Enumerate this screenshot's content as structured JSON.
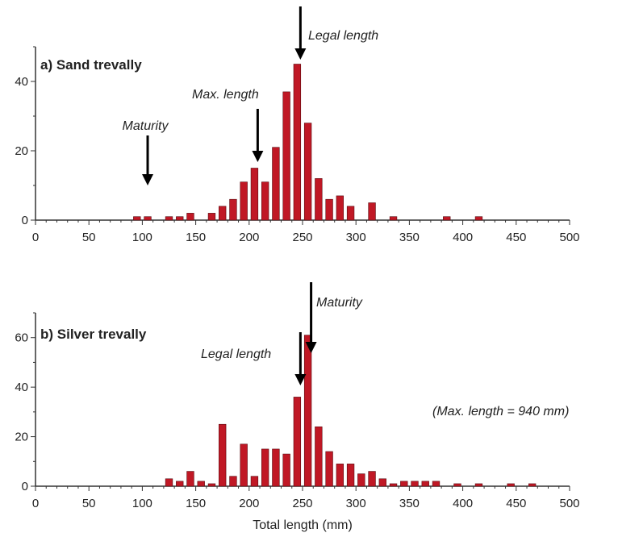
{
  "colors": {
    "bar": "#c01825",
    "bar_edge": "#5a0a10",
    "axis": "#333333",
    "arrow": "#000000"
  },
  "xlabel": "Total length (mm)",
  "chart_data": [
    {
      "type": "bar",
      "title": "a) Sand trevally",
      "xlim": [
        0,
        500
      ],
      "ylim": [
        0,
        50
      ],
      "xticks": [
        0,
        50,
        100,
        150,
        200,
        250,
        300,
        350,
        400,
        450,
        500
      ],
      "yticks": [
        0,
        20,
        40
      ],
      "x": [
        95,
        105,
        125,
        135,
        145,
        165,
        175,
        185,
        195,
        205,
        215,
        225,
        235,
        245,
        255,
        265,
        275,
        285,
        295,
        315,
        335,
        385,
        415
      ],
      "values": [
        1,
        1,
        1,
        1,
        2,
        2,
        4,
        6,
        11,
        15,
        11,
        21,
        37,
        45,
        28,
        12,
        6,
        7,
        4,
        5,
        1,
        1,
        1
      ],
      "annotations": [
        {
          "text": "Maturity",
          "x": 105
        },
        {
          "text": "Max. length",
          "x": 208
        },
        {
          "text": "Legal length",
          "x": 248
        }
      ]
    },
    {
      "type": "bar",
      "title": "b) Silver trevally",
      "xlim": [
        0,
        500
      ],
      "ylim": [
        0,
        70
      ],
      "xticks": [
        0,
        50,
        100,
        150,
        200,
        250,
        300,
        350,
        400,
        450,
        500
      ],
      "yticks": [
        0,
        20,
        40,
        60
      ],
      "x": [
        125,
        135,
        145,
        155,
        165,
        175,
        185,
        195,
        205,
        215,
        225,
        235,
        245,
        255,
        265,
        275,
        285,
        295,
        305,
        315,
        325,
        335,
        345,
        355,
        365,
        375,
        395,
        415,
        445,
        465
      ],
      "values": [
        3,
        2,
        6,
        2,
        1,
        25,
        4,
        17,
        4,
        15,
        15,
        13,
        36,
        61,
        24,
        14,
        9,
        9,
        5,
        6,
        3,
        1,
        2,
        2,
        2,
        2,
        1,
        1,
        1,
        1
      ],
      "annotations": [
        {
          "text": "Legal length",
          "x": 248
        },
        {
          "text": "Maturity",
          "x": 258
        },
        {
          "text": "(Max. length = 940 mm)"
        }
      ]
    }
  ]
}
